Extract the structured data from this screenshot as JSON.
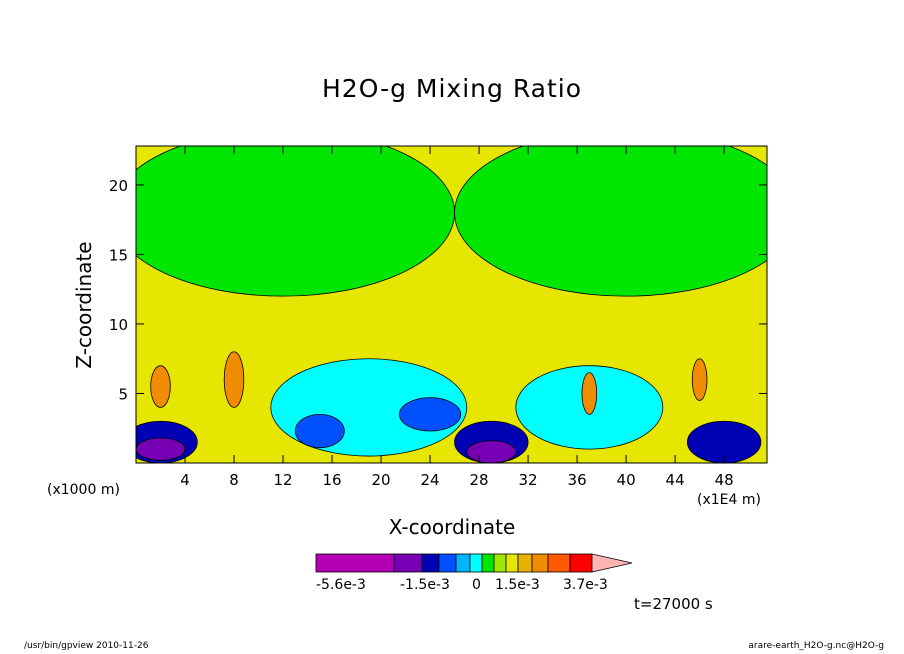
{
  "chart_data": {
    "type": "heatmap",
    "title": "H2O-g Mixing Ratio",
    "xlabel": "X-coordinate",
    "ylabel": "Z-coordinate",
    "x_unit_left": "(x1000 m)",
    "x_unit_right": "(x1E4 m)",
    "xlim": [
      0,
      51.5
    ],
    "ylim": [
      0,
      22.8
    ],
    "x_ticks": [
      4,
      8,
      12,
      16,
      20,
      24,
      28,
      32,
      36,
      40,
      44,
      48
    ],
    "y_ticks": [
      5,
      10,
      15,
      20
    ],
    "time_label": "t=27000 s",
    "colorbar": {
      "labels": [
        "-5.6e-3",
        "-1.5e-3",
        "0",
        "1.5e-3",
        "3.7e-3"
      ],
      "colors": [
        "#b400b4",
        "#7800b4",
        "#0000b4",
        "#0050ff",
        "#00b4ff",
        "#00ffff",
        "#00e600",
        "#a0e600",
        "#e6e600",
        "#e6b400",
        "#f08c00",
        "#ff5a00",
        "#ff0000",
        "#ff8080",
        "#ffb4b4"
      ]
    },
    "regions": [
      {
        "level": "green",
        "cx": 12,
        "cy": 18,
        "rx": 14,
        "ry": 6
      },
      {
        "level": "green",
        "cx": 40,
        "cy": 18,
        "rx": 14,
        "ry": 6
      },
      {
        "level": "cyan",
        "cx": 19,
        "cy": 4,
        "rx": 8,
        "ry": 3.5
      },
      {
        "level": "cyan",
        "cx": 37,
        "cy": 4,
        "rx": 6,
        "ry": 3
      },
      {
        "level": "blue",
        "cx": 15,
        "cy": 2.3,
        "rx": 2,
        "ry": 1.2
      },
      {
        "level": "blue",
        "cx": 24,
        "cy": 3.5,
        "rx": 2.5,
        "ry": 1.2
      },
      {
        "level": "darkblue",
        "cx": 2,
        "cy": 1.5,
        "rx": 3,
        "ry": 1.5
      },
      {
        "level": "darkblue",
        "cx": 29,
        "cy": 1.5,
        "rx": 3,
        "ry": 1.5
      },
      {
        "level": "darkblue",
        "cx": 48,
        "cy": 1.5,
        "rx": 3,
        "ry": 1.5
      },
      {
        "level": "purple",
        "cx": 2,
        "cy": 1,
        "rx": 2,
        "ry": 0.8
      },
      {
        "level": "purple",
        "cx": 29,
        "cy": 0.8,
        "rx": 2,
        "ry": 0.8
      },
      {
        "level": "orange",
        "cx": 2,
        "cy": 5.5,
        "rx": 0.8,
        "ry": 1.5
      },
      {
        "level": "orange",
        "cx": 8,
        "cy": 6,
        "rx": 0.8,
        "ry": 2
      },
      {
        "level": "orange",
        "cx": 37,
        "cy": 5,
        "rx": 0.6,
        "ry": 1.5
      },
      {
        "level": "orange",
        "cx": 46,
        "cy": 6,
        "rx": 0.6,
        "ry": 1.5
      }
    ]
  },
  "footer": {
    "left": "/usr/bin/gpview   2010-11-26",
    "right": "arare-earth_H2O-g.nc@H2O-g"
  }
}
